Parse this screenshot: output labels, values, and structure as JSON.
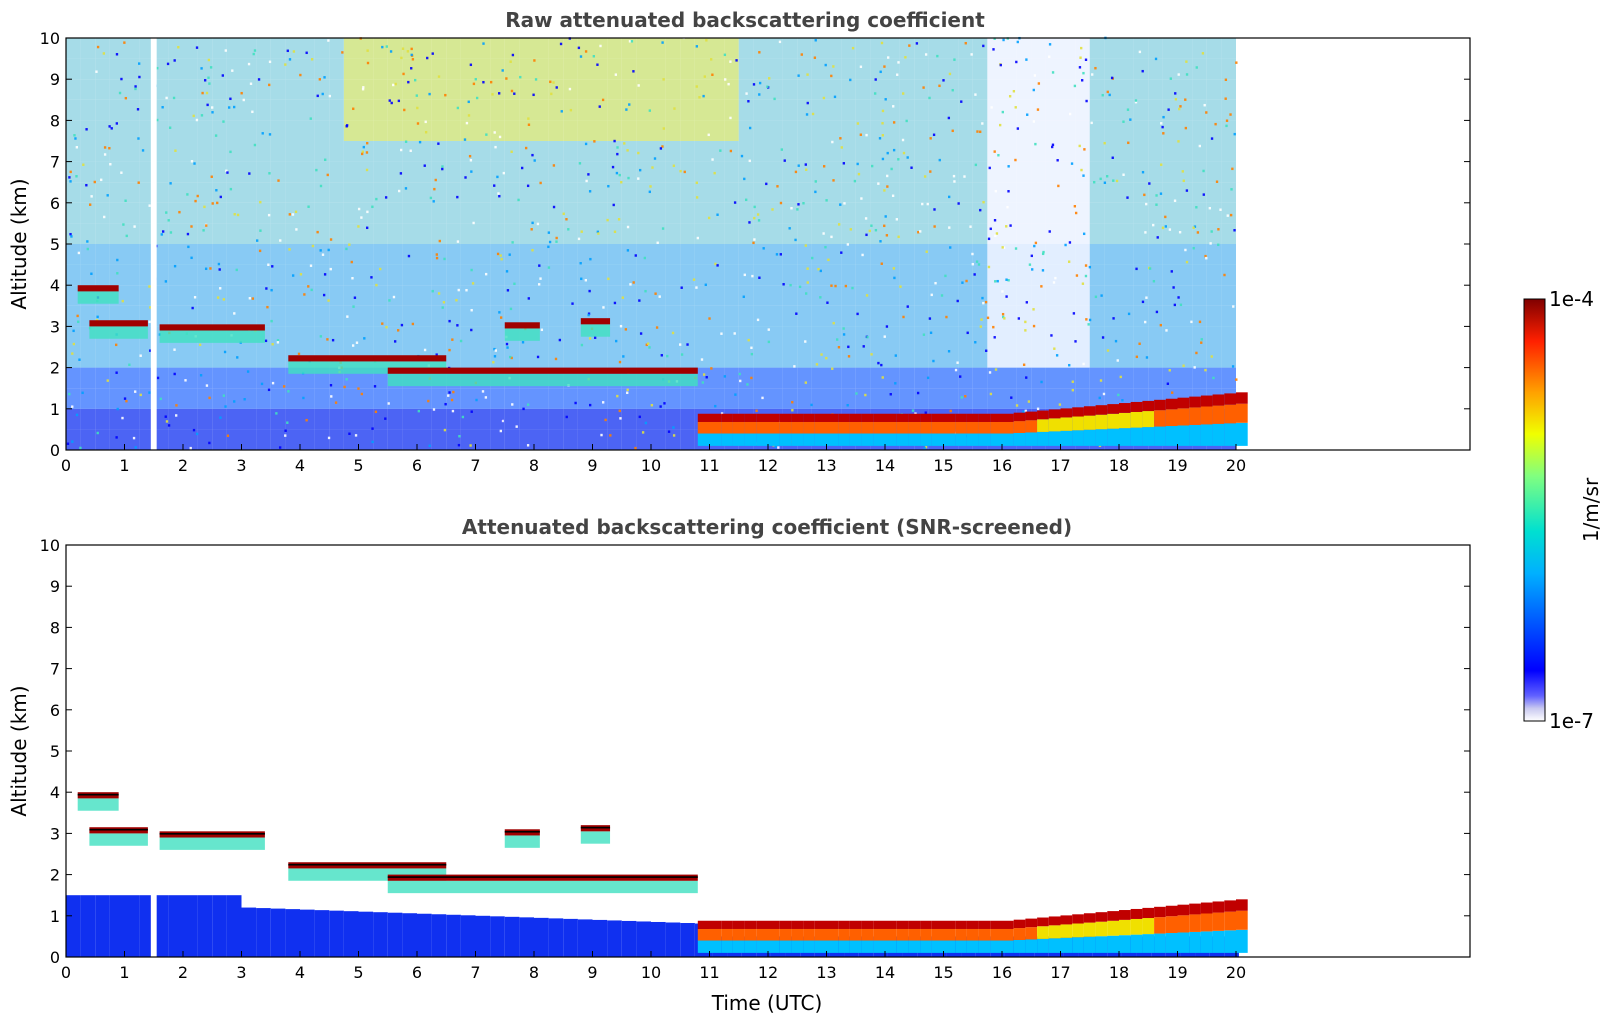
{
  "chart_data": [
    {
      "type": "heatmap",
      "title": "Raw attenuated backscattering coefficient",
      "xlabel": "",
      "ylabel": "Altitude (km)",
      "xlim": [
        0,
        24
      ],
      "ylim": [
        0,
        10
      ],
      "xticks": [
        "0",
        "1",
        "2",
        "3",
        "4",
        "5",
        "6",
        "7",
        "8",
        "9",
        "10",
        "11",
        "12",
        "13",
        "14",
        "15",
        "16",
        "17",
        "18",
        "19",
        "20"
      ],
      "yticks": [
        "0",
        "1",
        "2",
        "3",
        "4",
        "5",
        "6",
        "7",
        "8",
        "9",
        "10"
      ],
      "data_extent_hours": [
        0,
        20
      ],
      "gap_hours": [
        1.45,
        1.55
      ],
      "layers": [
        {
          "feature": "cloud layer",
          "x": [
            0.2,
            0.9
          ],
          "altitude_km": 3.9
        },
        {
          "feature": "cloud layer",
          "x": [
            0.4,
            1.4
          ],
          "altitude_km": 3.05
        },
        {
          "feature": "cloud layer",
          "x": [
            1.6,
            3.4
          ],
          "altitude_km": 2.95
        },
        {
          "feature": "cloud layer",
          "x": [
            3.8,
            6.5
          ],
          "altitude_km": 2.2
        },
        {
          "feature": "cloud layer",
          "x": [
            5.5,
            10.8
          ],
          "altitude_km": 1.9
        },
        {
          "feature": "cloud layer",
          "x": [
            7.5,
            8.1
          ],
          "altitude_km": 3.0
        },
        {
          "feature": "cloud layer",
          "x": [
            8.8,
            9.3
          ],
          "altitude_km": 3.1
        },
        {
          "feature": "boundary layer top",
          "x": [
            10.8,
            16.0
          ],
          "altitude_km": 0.8
        },
        {
          "feature": "boundary layer top",
          "x": [
            16.0,
            20.0
          ],
          "altitude_km": 1.3
        }
      ]
    },
    {
      "type": "heatmap",
      "title": "Attenuated backscattering coefficient (SNR-screened)",
      "xlabel": "Time (UTC)",
      "ylabel": "Altitude (km)",
      "xlim": [
        0,
        24
      ],
      "ylim": [
        0,
        10
      ],
      "xticks": [
        "0",
        "1",
        "2",
        "3",
        "4",
        "5",
        "6",
        "7",
        "8",
        "9",
        "10",
        "11",
        "12",
        "13",
        "14",
        "15",
        "16",
        "17",
        "18",
        "19",
        "20"
      ],
      "yticks": [
        "0",
        "1",
        "2",
        "3",
        "4",
        "5",
        "6",
        "7",
        "8",
        "9",
        "10"
      ],
      "data_extent_hours": [
        0,
        20
      ],
      "gap_hours": [
        1.45,
        1.55
      ]
    }
  ],
  "colorbar": {
    "label": "1/m/sr",
    "max_label": "1e-4",
    "min_label": "1e-7",
    "colormap": "jet"
  }
}
